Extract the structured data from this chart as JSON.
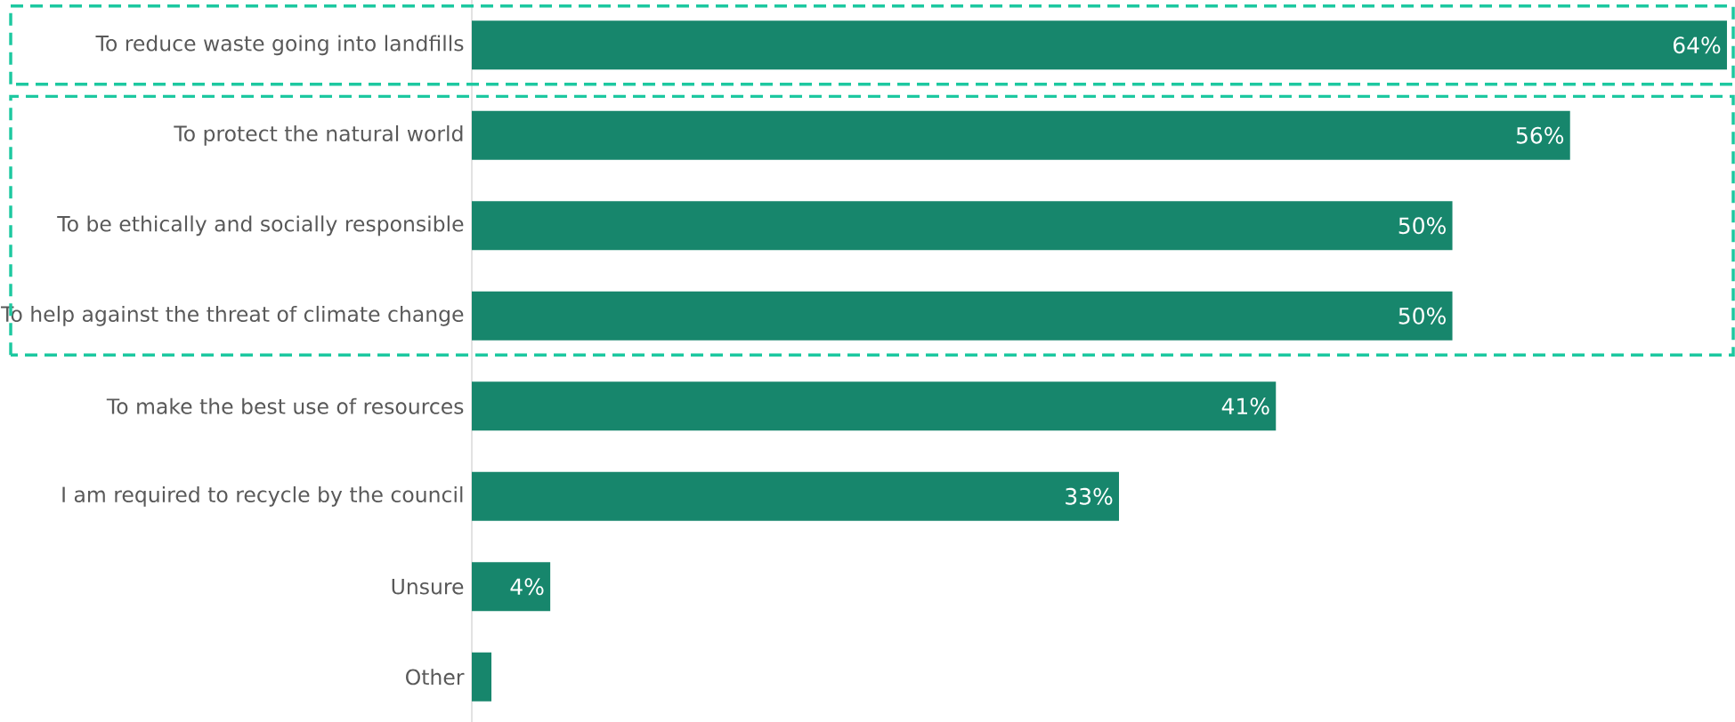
{
  "chart_data": {
    "type": "bar",
    "orientation": "horizontal",
    "categories": [
      "To reduce waste going into landfills",
      "To protect the natural world",
      "To be ethically and socially responsible",
      "To help against the threat of climate change",
      "To make the best use of resources",
      "I am required to recycle by the council",
      "Unsure",
      "Other"
    ],
    "values": [
      64,
      56,
      50,
      50,
      41,
      33,
      4,
      1
    ],
    "value_labels": [
      "64%",
      "56%",
      "50%",
      "50%",
      "41%",
      "33%",
      "4%",
      null
    ],
    "color": "#17866c"
  }
}
